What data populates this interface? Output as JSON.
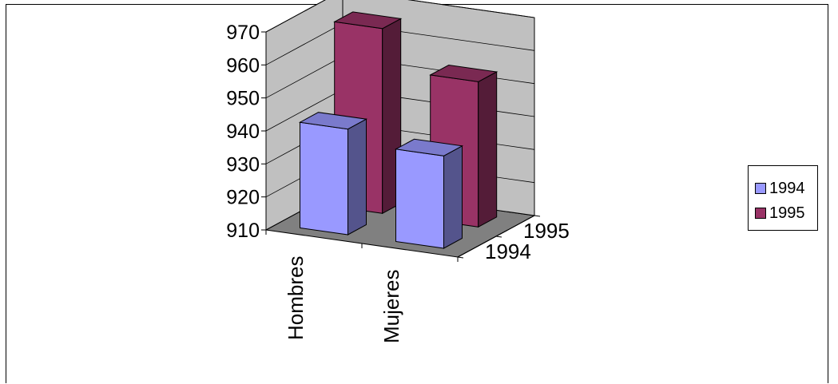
{
  "chart_data": {
    "type": "bar",
    "categories": [
      "Hombres",
      "Mujeres"
    ],
    "series": [
      {
        "name": "1994",
        "values": [
          942,
          938
        ],
        "color": "#9999FF"
      },
      {
        "name": "1995",
        "values": [
          966,
          954
        ],
        "color": "#993366"
      }
    ],
    "depth_labels": [
      "1994",
      "1995"
    ],
    "ylim": [
      910,
      970
    ],
    "yticks": [
      910,
      920,
      930,
      940,
      950,
      960,
      970
    ],
    "grid": true,
    "legend_position": "right",
    "projection": "3d"
  }
}
